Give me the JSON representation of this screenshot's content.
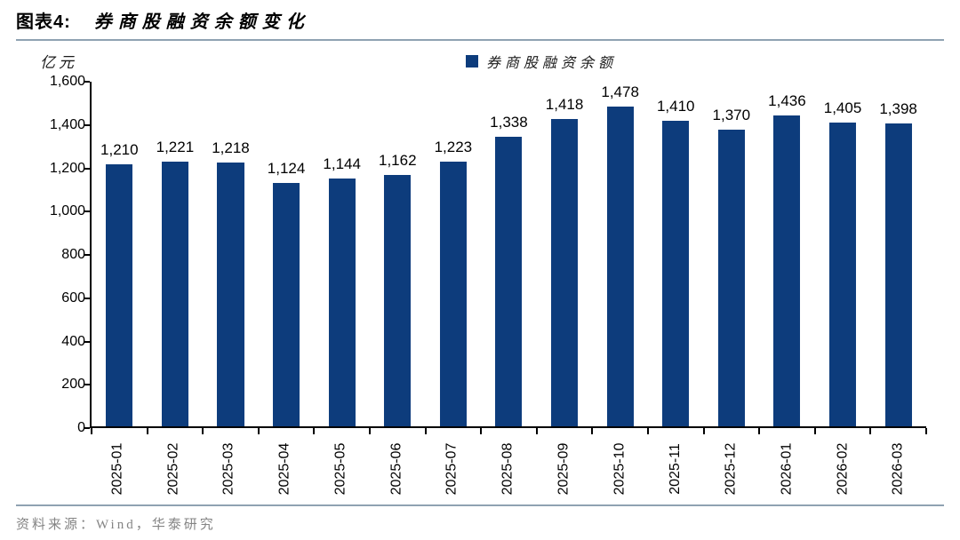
{
  "header": {
    "figure_label": "图表4:",
    "title": "券商股融资余额变化"
  },
  "chart_data": {
    "type": "bar",
    "title": "券商股融资余额变化",
    "unit_label": "亿元",
    "legend": "券商股融资余额",
    "legend_position": "top-center",
    "categories": [
      "2025-01",
      "2025-02",
      "2025-03",
      "2025-04",
      "2025-05",
      "2025-06",
      "2025-07",
      "2025-08",
      "2025-09",
      "2025-10",
      "2025-11",
      "2025-12",
      "2026-01",
      "2026-02",
      "2026-03"
    ],
    "values": [
      1210,
      1221,
      1218,
      1124,
      1144,
      1162,
      1223,
      1338,
      1418,
      1478,
      1410,
      1370,
      1436,
      1405,
      1398
    ],
    "xlabel": "",
    "ylabel": "亿元",
    "ylim": [
      0,
      1600
    ],
    "ytick_step": 200,
    "grid": false,
    "data_labels": true,
    "bar_color": "#0d3c7c"
  },
  "footer": {
    "source": "资料来源：Wind，华泰研究"
  }
}
